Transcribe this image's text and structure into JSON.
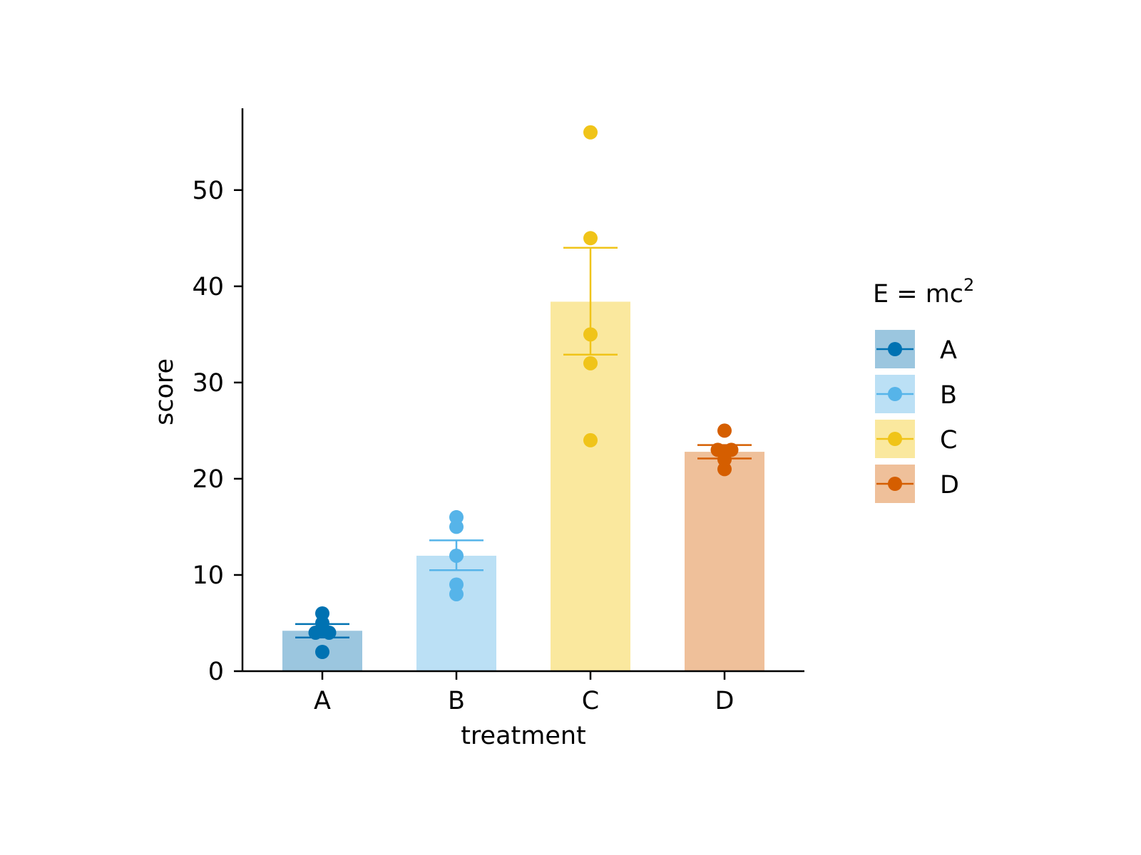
{
  "chart_data": {
    "type": "bar",
    "xlabel": "treatment",
    "ylabel": "score",
    "ylim": [
      0,
      58.5
    ],
    "yticks": [
      0,
      10,
      20,
      30,
      40,
      50
    ],
    "ytick_labels": [
      "0",
      "10",
      "20",
      "30",
      "40",
      "50"
    ],
    "categories": [
      "A",
      "B",
      "C",
      "D"
    ],
    "colors": [
      "#0072B2",
      "#56B4E9",
      "#F0C419",
      "#D55E00"
    ],
    "fill_colors": [
      "#9BC6DF",
      "#BBE0F5",
      "#FAE89E",
      "#EFC09A"
    ],
    "bar_values": [
      4.2,
      12.0,
      38.4,
      22.8
    ],
    "error_bars": [
      {
        "low": 3.5,
        "high": 4.9
      },
      {
        "low": 10.5,
        "high": 13.6
      },
      {
        "low": 32.9,
        "high": 44.0
      },
      {
        "low": 22.1,
        "high": 23.5
      }
    ],
    "points": [
      [
        2,
        4,
        4,
        5,
        6
      ],
      [
        8,
        9,
        12,
        15,
        16
      ],
      [
        24,
        32,
        35,
        45,
        56
      ],
      [
        21,
        22,
        23,
        23,
        25
      ]
    ],
    "legend": {
      "title_base": "E = mc",
      "title_sup": "2",
      "entries": [
        "A",
        "B",
        "C",
        "D"
      ],
      "placement": "right"
    },
    "grid": false
  }
}
